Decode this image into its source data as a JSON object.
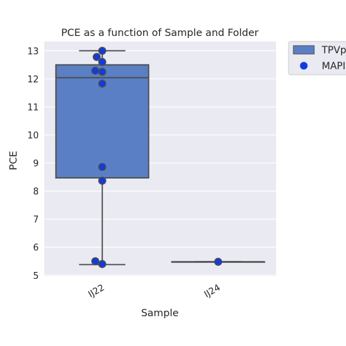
{
  "chart_data": {
    "type": "box",
    "title": "PCE as a function of Sample and Folder",
    "xlabel": "Sample",
    "ylabel": "PCE",
    "categories": [
      "IJ22",
      "IJ24"
    ],
    "ylim": [
      4.97,
      13.33
    ],
    "yticks": [
      5,
      6,
      7,
      8,
      9,
      10,
      11,
      12,
      13
    ],
    "grid": true,
    "legend": {
      "placement": "outside-top-right",
      "entries": [
        {
          "label": "TPVp",
          "marker": "box"
        },
        {
          "label": "MAPI",
          "marker": "dot"
        }
      ]
    },
    "boxes": [
      {
        "name": "TPVp",
        "category": "IJ22",
        "q1": 8.47,
        "median": 12.04,
        "q3": 12.5,
        "whisker_low": 5.38,
        "whisker_high": 13.0
      },
      {
        "name": "TPVp",
        "category": "IJ24",
        "q1": 5.48,
        "median": 5.48,
        "q3": 5.48,
        "whisker_low": 5.48,
        "whisker_high": 5.48
      }
    ],
    "series": [
      {
        "name": "MAPI",
        "points": [
          {
            "x": "IJ22",
            "y": 13.0
          },
          {
            "x": "IJ22",
            "y": 12.78
          },
          {
            "x": "IJ22",
            "y": 12.6
          },
          {
            "x": "IJ22",
            "y": 12.29
          },
          {
            "x": "IJ22",
            "y": 12.25
          },
          {
            "x": "IJ22",
            "y": 11.83
          },
          {
            "x": "IJ22",
            "y": 8.86
          },
          {
            "x": "IJ22",
            "y": 8.37
          },
          {
            "x": "IJ22",
            "y": 5.5
          },
          {
            "x": "IJ22",
            "y": 5.4
          },
          {
            "x": "IJ24",
            "y": 5.48
          }
        ]
      }
    ],
    "colors": {
      "background": "#eaeaf2",
      "grid": "#ffffff",
      "box_fill": "#5a7fc5",
      "box_edge": "#4d4d4d",
      "point_fill": "#0d3be8",
      "point_edge": "#4d4d4d"
    }
  }
}
